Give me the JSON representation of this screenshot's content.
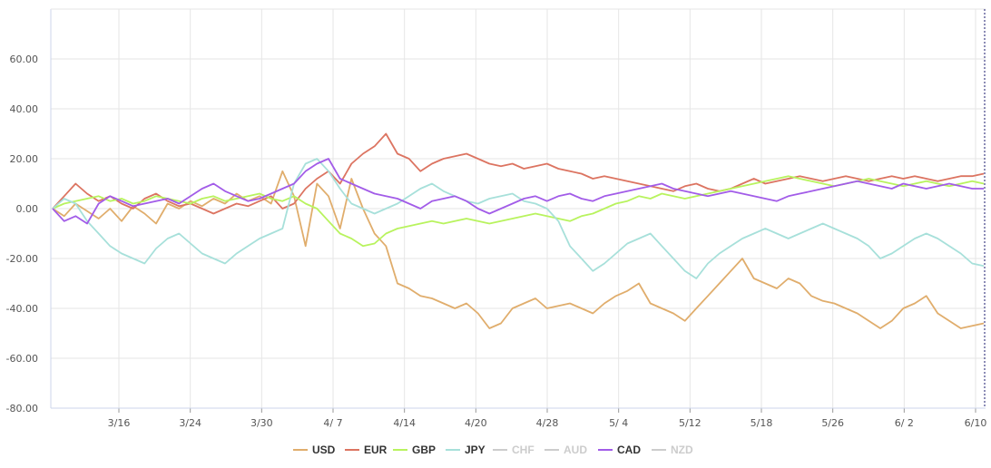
{
  "chart_data": {
    "type": "line",
    "title": "",
    "xlabel": "",
    "ylabel": "",
    "ylim": [
      -80,
      80
    ],
    "y_ticks": [
      60,
      40,
      20,
      0,
      -20,
      -40,
      -60,
      -80
    ],
    "y_tick_labels": [
      "60.00",
      "40.00",
      "20.00",
      "0.00",
      "-20.00",
      "-40.00",
      "-60.00",
      "-80.00"
    ],
    "x_tick_labels": [
      "3/16",
      "3/24",
      "3/30",
      "4/ 7",
      "4/14",
      "4/20",
      "4/28",
      "5/ 4",
      "5/12",
      "5/18",
      "5/26",
      "6/ 2",
      "6/10"
    ],
    "grid": true,
    "legend_position": "bottom-center",
    "colors": {
      "USD": "#e0ad6c",
      "EUR": "#dc7461",
      "GBP": "#b8f35e",
      "JPY": "#a7e0da",
      "CHF": "#cccccc",
      "AUD": "#cccccc",
      "CAD": "#a25ce8",
      "NZD": "#cccccc"
    },
    "legend": [
      {
        "name": "USD",
        "active": true
      },
      {
        "name": "EUR",
        "active": true
      },
      {
        "name": "GBP",
        "active": true
      },
      {
        "name": "JPY",
        "active": true
      },
      {
        "name": "CHF",
        "active": false
      },
      {
        "name": "AUD",
        "active": false
      },
      {
        "name": "CAD",
        "active": true
      },
      {
        "name": "NZD",
        "active": false
      }
    ],
    "series": [
      {
        "name": "USD",
        "values": [
          0,
          -3,
          2,
          -1,
          -4,
          0,
          -5,
          1,
          -2,
          -6,
          2,
          0,
          3,
          1,
          4,
          2,
          6,
          3,
          5,
          2,
          15,
          5,
          -15,
          10,
          5,
          -8,
          12,
          0,
          -10,
          -15,
          -30,
          -32,
          -35,
          -36,
          -38,
          -40,
          -38,
          -42,
          -48,
          -46,
          -40,
          -38,
          -36,
          -40,
          -39,
          -38,
          -40,
          -42,
          -38,
          -35,
          -33,
          -30,
          -38,
          -40,
          -42,
          -45,
          -40,
          -35,
          -30,
          -25,
          -20,
          -28,
          -30,
          -32,
          -28,
          -30,
          -35,
          -37,
          -38,
          -40,
          -42,
          -45,
          -48,
          -45,
          -40,
          -38,
          -35,
          -42,
          -45,
          -48,
          -47,
          -46
        ]
      },
      {
        "name": "EUR",
        "values": [
          0,
          5,
          10,
          6,
          3,
          5,
          2,
          0,
          4,
          6,
          3,
          1,
          2,
          0,
          -2,
          0,
          2,
          1,
          3,
          5,
          0,
          2,
          8,
          12,
          15,
          10,
          18,
          22,
          25,
          30,
          22,
          20,
          15,
          18,
          20,
          21,
          22,
          20,
          18,
          17,
          18,
          16,
          17,
          18,
          16,
          15,
          14,
          12,
          13,
          12,
          11,
          10,
          9,
          8,
          7,
          9,
          10,
          8,
          7,
          8,
          10,
          12,
          10,
          11,
          12,
          13,
          12,
          11,
          12,
          13,
          12,
          11,
          12,
          13,
          12,
          13,
          12,
          11,
          12,
          13,
          13,
          14
        ]
      },
      {
        "name": "GBP",
        "values": [
          0,
          2,
          3,
          4,
          5,
          3,
          4,
          2,
          3,
          5,
          4,
          3,
          2,
          4,
          5,
          3,
          4,
          5,
          6,
          4,
          3,
          5,
          2,
          0,
          -5,
          -10,
          -12,
          -15,
          -14,
          -10,
          -8,
          -7,
          -6,
          -5,
          -6,
          -5,
          -4,
          -5,
          -6,
          -5,
          -4,
          -3,
          -2,
          -3,
          -4,
          -5,
          -3,
          -2,
          0,
          2,
          3,
          5,
          4,
          6,
          5,
          4,
          5,
          6,
          7,
          8,
          9,
          10,
          11,
          12,
          13,
          12,
          11,
          10,
          9,
          10,
          11,
          12,
          11,
          10,
          9,
          10,
          11,
          10,
          9,
          10,
          11,
          10
        ]
      },
      {
        "name": "JPY",
        "values": [
          0,
          4,
          2,
          -5,
          -10,
          -15,
          -18,
          -20,
          -22,
          -16,
          -12,
          -10,
          -14,
          -18,
          -20,
          -22,
          -18,
          -15,
          -12,
          -10,
          -8,
          10,
          18,
          20,
          15,
          8,
          2,
          0,
          -2,
          0,
          2,
          5,
          8,
          10,
          7,
          5,
          3,
          2,
          4,
          5,
          6,
          3,
          2,
          0,
          -5,
          -15,
          -20,
          -25,
          -22,
          -18,
          -14,
          -12,
          -10,
          -15,
          -20,
          -25,
          -28,
          -22,
          -18,
          -15,
          -12,
          -10,
          -8,
          -10,
          -12,
          -10,
          -8,
          -6,
          -8,
          -10,
          -12,
          -15,
          -20,
          -18,
          -15,
          -12,
          -10,
          -12,
          -15,
          -18,
          -22,
          -23
        ]
      },
      {
        "name": "CAD",
        "values": [
          0,
          -5,
          -3,
          -6,
          2,
          5,
          3,
          1,
          2,
          3,
          4,
          2,
          5,
          8,
          10,
          7,
          5,
          3,
          4,
          6,
          8,
          10,
          15,
          18,
          20,
          12,
          10,
          8,
          6,
          5,
          4,
          2,
          0,
          3,
          4,
          5,
          3,
          0,
          -2,
          0,
          2,
          4,
          5,
          3,
          5,
          6,
          4,
          3,
          5,
          6,
          7,
          8,
          9,
          10,
          8,
          7,
          6,
          5,
          6,
          7,
          6,
          5,
          4,
          3,
          5,
          6,
          7,
          8,
          9,
          10,
          11,
          10,
          9,
          8,
          10,
          9,
          8,
          9,
          10,
          9,
          8,
          8
        ]
      }
    ]
  }
}
